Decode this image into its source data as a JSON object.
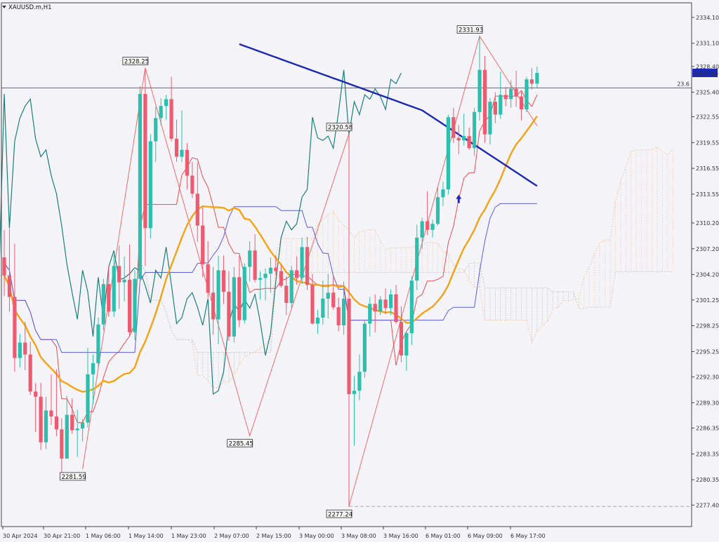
{
  "window": {
    "symbol_label": "XAUUSD.m,H1",
    "menu_icon": "triangle-down-icon"
  },
  "colors": {
    "background": "#f4f4f8",
    "bull": "#2bbfae",
    "bear": "#ee5a6f",
    "ma_slow": "#1b28b5",
    "ma_mid": "#f5a213",
    "tenkan": "#ea4e4e",
    "kijun": "#5b5de0",
    "chikou": "#1a7f7a",
    "zigzag": "#f06b6b",
    "cloud": "#f1c9a8",
    "cloud_grey": "#b7b7b7",
    "hline": "#5a5ab5",
    "price_tag": "#1b28b5",
    "arrow": "#1b28b5"
  },
  "chart_data": {
    "type": "candlestick",
    "title": "XAUUSD.m,H1",
    "ylim": [
      2274.9,
      2335.8
    ],
    "y_ticks": [
      "2334.10",
      "2331.10",
      "2328.40",
      "2325.40",
      "2322.55",
      "2319.55",
      "2316.55",
      "2313.55",
      "2310.20",
      "2307.20",
      "2304.20",
      "2301.25",
      "2298.25",
      "2295.25",
      "2292.30",
      "2289.30",
      "2286.35",
      "2283.35",
      "2280.35",
      "2277.40"
    ],
    "x_ticks": [
      "30 Apr 2024",
      "30 Apr 21:00",
      "1 May 06:00",
      "1 May 14:00",
      "1 May 23:00",
      "2 May 07:00",
      "2 May 15:00",
      "3 May 00:00",
      "3 May 08:00",
      "3 May 16:00",
      "6 May 01:00",
      "6 May 09:00",
      "6 May 17:00"
    ],
    "current_price": "2327.65",
    "horizontal_line": {
      "label": "23.6",
      "price": 2325.9
    },
    "zigzag_labels": [
      {
        "text": "2281.59",
        "price": 2281.59
      },
      {
        "text": "2328.25",
        "price": 2328.25
      },
      {
        "text": "2285.45",
        "price": 2285.45
      },
      {
        "text": "2320.58",
        "price": 2320.58
      },
      {
        "text": "2277.24",
        "price": 2277.24
      },
      {
        "text": "2331.93",
        "price": 2331.93
      }
    ],
    "candles": [
      [
        2306.2,
        2309.4,
        2301.7,
        2304.1
      ],
      [
        2304.1,
        2309.5,
        2299.9,
        2301.6
      ],
      [
        2301.6,
        2307.8,
        2292.9,
        2294.5
      ],
      [
        2294.5,
        2297.3,
        2293.4,
        2296.3
      ],
      [
        2296.3,
        2298.7,
        2293.1,
        2294.9
      ],
      [
        2294.9,
        2296.4,
        2290.2,
        2290.6
      ],
      [
        2290.6,
        2291.6,
        2285.9,
        2290.0
      ],
      [
        2290.0,
        2291.6,
        2283.8,
        2284.7
      ],
      [
        2284.7,
        2290.0,
        2283.9,
        2288.4
      ],
      [
        2288.4,
        2292.6,
        2286.7,
        2287.7
      ],
      [
        2287.7,
        2293.2,
        2285.4,
        2286.2
      ],
      [
        2286.2,
        2287.5,
        2280.8,
        2282.8
      ],
      [
        2282.8,
        2290.1,
        2282.9,
        2287.9
      ],
      [
        2287.9,
        2289.8,
        2285.7,
        2286.1
      ],
      [
        2286.1,
        2288.5,
        2283.0,
        2286.3
      ],
      [
        2286.3,
        2287.4,
        2284.8,
        2287.0
      ],
      [
        2287.0,
        2295.7,
        2286.4,
        2292.6
      ],
      [
        2292.6,
        2294.9,
        2289.1,
        2293.9
      ],
      [
        2293.9,
        2299.2,
        2293.5,
        2298.4
      ],
      [
        2298.4,
        2303.7,
        2297.7,
        2303.1
      ],
      [
        2303.1,
        2305.2,
        2299.3,
        2299.9
      ],
      [
        2299.9,
        2306.5,
        2299.3,
        2305.2
      ],
      [
        2305.2,
        2307.6,
        2300.2,
        2303.3
      ],
      [
        2303.3,
        2306.3,
        2301.1,
        2303.6
      ],
      [
        2303.6,
        2307.7,
        2297.1,
        2297.5
      ],
      [
        2297.5,
        2304.7,
        2296.6,
        2303.7
      ],
      [
        2303.7,
        2326.1,
        2303.5,
        2325.2
      ],
      [
        2325.2,
        2328.1,
        2305.2,
        2309.6
      ],
      [
        2309.6,
        2320.5,
        2308.4,
        2319.7
      ],
      [
        2319.7,
        2323.7,
        2317.3,
        2322.4
      ],
      [
        2322.4,
        2324.7,
        2321.6,
        2323.8
      ],
      [
        2323.8,
        2325.1,
        2322.2,
        2324.6
      ],
      [
        2324.6,
        2327.2,
        2319.7,
        2320.0
      ],
      [
        2320.0,
        2322.2,
        2317.3,
        2317.9
      ],
      [
        2317.9,
        2323.3,
        2317.3,
        2318.7
      ],
      [
        2318.7,
        2319.5,
        2314.1,
        2315.7
      ],
      [
        2315.7,
        2317.3,
        2313.1,
        2313.6
      ],
      [
        2313.6,
        2317.2,
        2308.0,
        2309.9
      ],
      [
        2309.9,
        2312.0,
        2303.9,
        2305.4
      ],
      [
        2305.4,
        2308.1,
        2301.5,
        2302.1
      ],
      [
        2302.1,
        2305.1,
        2297.2,
        2299.0
      ],
      [
        2299.0,
        2306.4,
        2296.1,
        2304.7
      ],
      [
        2304.7,
        2306.4,
        2300.8,
        2302.2
      ],
      [
        2302.2,
        2304.6,
        2296.5,
        2297.0
      ],
      [
        2297.0,
        2305.1,
        2296.3,
        2303.9
      ],
      [
        2303.9,
        2306.4,
        2298.1,
        2298.9
      ],
      [
        2298.9,
        2305.5,
        2298.5,
        2305.1
      ],
      [
        2305.1,
        2308.1,
        2303.4,
        2307.0
      ],
      [
        2307.0,
        2308.9,
        2303.3,
        2303.6
      ],
      [
        2303.6,
        2304.6,
        2301.3,
        2303.8
      ],
      [
        2303.8,
        2304.9,
        2301.2,
        2304.3
      ],
      [
        2304.3,
        2306.2,
        2302.1,
        2305.0
      ],
      [
        2305.0,
        2306.4,
        2304.1,
        2304.6
      ],
      [
        2304.6,
        2305.3,
        2302.7,
        2302.9
      ],
      [
        2302.9,
        2304.0,
        2299.5,
        2300.9
      ],
      [
        2300.9,
        2305.2,
        2300.3,
        2304.7
      ],
      [
        2304.7,
        2306.3,
        2303.0,
        2303.8
      ],
      [
        2303.8,
        2308.5,
        2303.1,
        2307.4
      ],
      [
        2307.4,
        2308.6,
        2302.4,
        2303.0
      ],
      [
        2303.0,
        2304.3,
        2298.4,
        2298.5
      ],
      [
        2298.5,
        2300.1,
        2297.3,
        2299.2
      ],
      [
        2299.2,
        2303.5,
        2298.4,
        2301.4
      ],
      [
        2301.4,
        2304.3,
        2299.1,
        2302.1
      ],
      [
        2302.1,
        2304.0,
        2300.1,
        2300.4
      ],
      [
        2300.4,
        2301.5,
        2297.6,
        2298.3
      ],
      [
        2298.3,
        2303.4,
        2297.2,
        2301.4
      ],
      [
        2301.4,
        2320.6,
        2277.2,
        2290.3
      ],
      [
        2290.3,
        2292.4,
        2284.3,
        2290.7
      ],
      [
        2290.7,
        2294.9,
        2289.6,
        2292.9
      ],
      [
        2292.9,
        2298.9,
        2292.2,
        2298.5
      ],
      [
        2298.5,
        2301.6,
        2297.0,
        2300.8
      ],
      [
        2300.8,
        2301.9,
        2297.5,
        2299.9
      ],
      [
        2299.9,
        2301.7,
        2299.5,
        2301.3
      ],
      [
        2301.3,
        2302.6,
        2299.6,
        2300.3
      ],
      [
        2300.3,
        2302.5,
        2299.5,
        2301.9
      ],
      [
        2301.9,
        2303.0,
        2298.5,
        2298.7
      ],
      [
        2298.7,
        2300.5,
        2294.0,
        2294.8
      ],
      [
        2294.8,
        2297.6,
        2293.0,
        2297.4
      ],
      [
        2297.4,
        2304.0,
        2296.0,
        2303.5
      ],
      [
        2303.5,
        2310.0,
        2302.4,
        2308.5
      ],
      [
        2308.5,
        2310.8,
        2307.2,
        2310.4
      ],
      [
        2310.4,
        2313.9,
        2308.8,
        2309.4
      ],
      [
        2309.4,
        2310.6,
        2308.5,
        2310.1
      ],
      [
        2310.1,
        2314.3,
        2309.9,
        2313.2
      ],
      [
        2313.2,
        2315.0,
        2312.2,
        2314.1
      ],
      [
        2314.1,
        2322.8,
        2313.5,
        2322.5
      ],
      [
        2322.5,
        2323.6,
        2319.5,
        2320.1
      ],
      [
        2320.1,
        2321.6,
        2318.2,
        2319.8
      ],
      [
        2319.8,
        2322.9,
        2319.2,
        2320.3
      ],
      [
        2320.3,
        2321.3,
        2318.7,
        2318.9
      ],
      [
        2318.9,
        2323.6,
        2318.0,
        2323.1
      ],
      [
        2323.1,
        2331.9,
        2322.1,
        2328.0
      ],
      [
        2328.0,
        2329.6,
        2319.5,
        2320.5
      ],
      [
        2320.5,
        2324.7,
        2319.3,
        2324.3
      ],
      [
        2324.3,
        2325.4,
        2321.8,
        2322.8
      ],
      [
        2322.8,
        2327.8,
        2322.3,
        2325.1
      ],
      [
        2325.1,
        2326.0,
        2323.8,
        2324.6
      ],
      [
        2324.6,
        2326.8,
        2323.6,
        2325.8
      ],
      [
        2325.8,
        2327.9,
        2323.7,
        2324.9
      ],
      [
        2324.9,
        2325.5,
        2322.1,
        2323.4
      ],
      [
        2323.4,
        2327.2,
        2323.1,
        2326.9
      ],
      [
        2326.9,
        2328.2,
        2325.7,
        2326.4
      ],
      [
        2326.4,
        2328.4,
        2325.9,
        2327.65
      ]
    ]
  }
}
